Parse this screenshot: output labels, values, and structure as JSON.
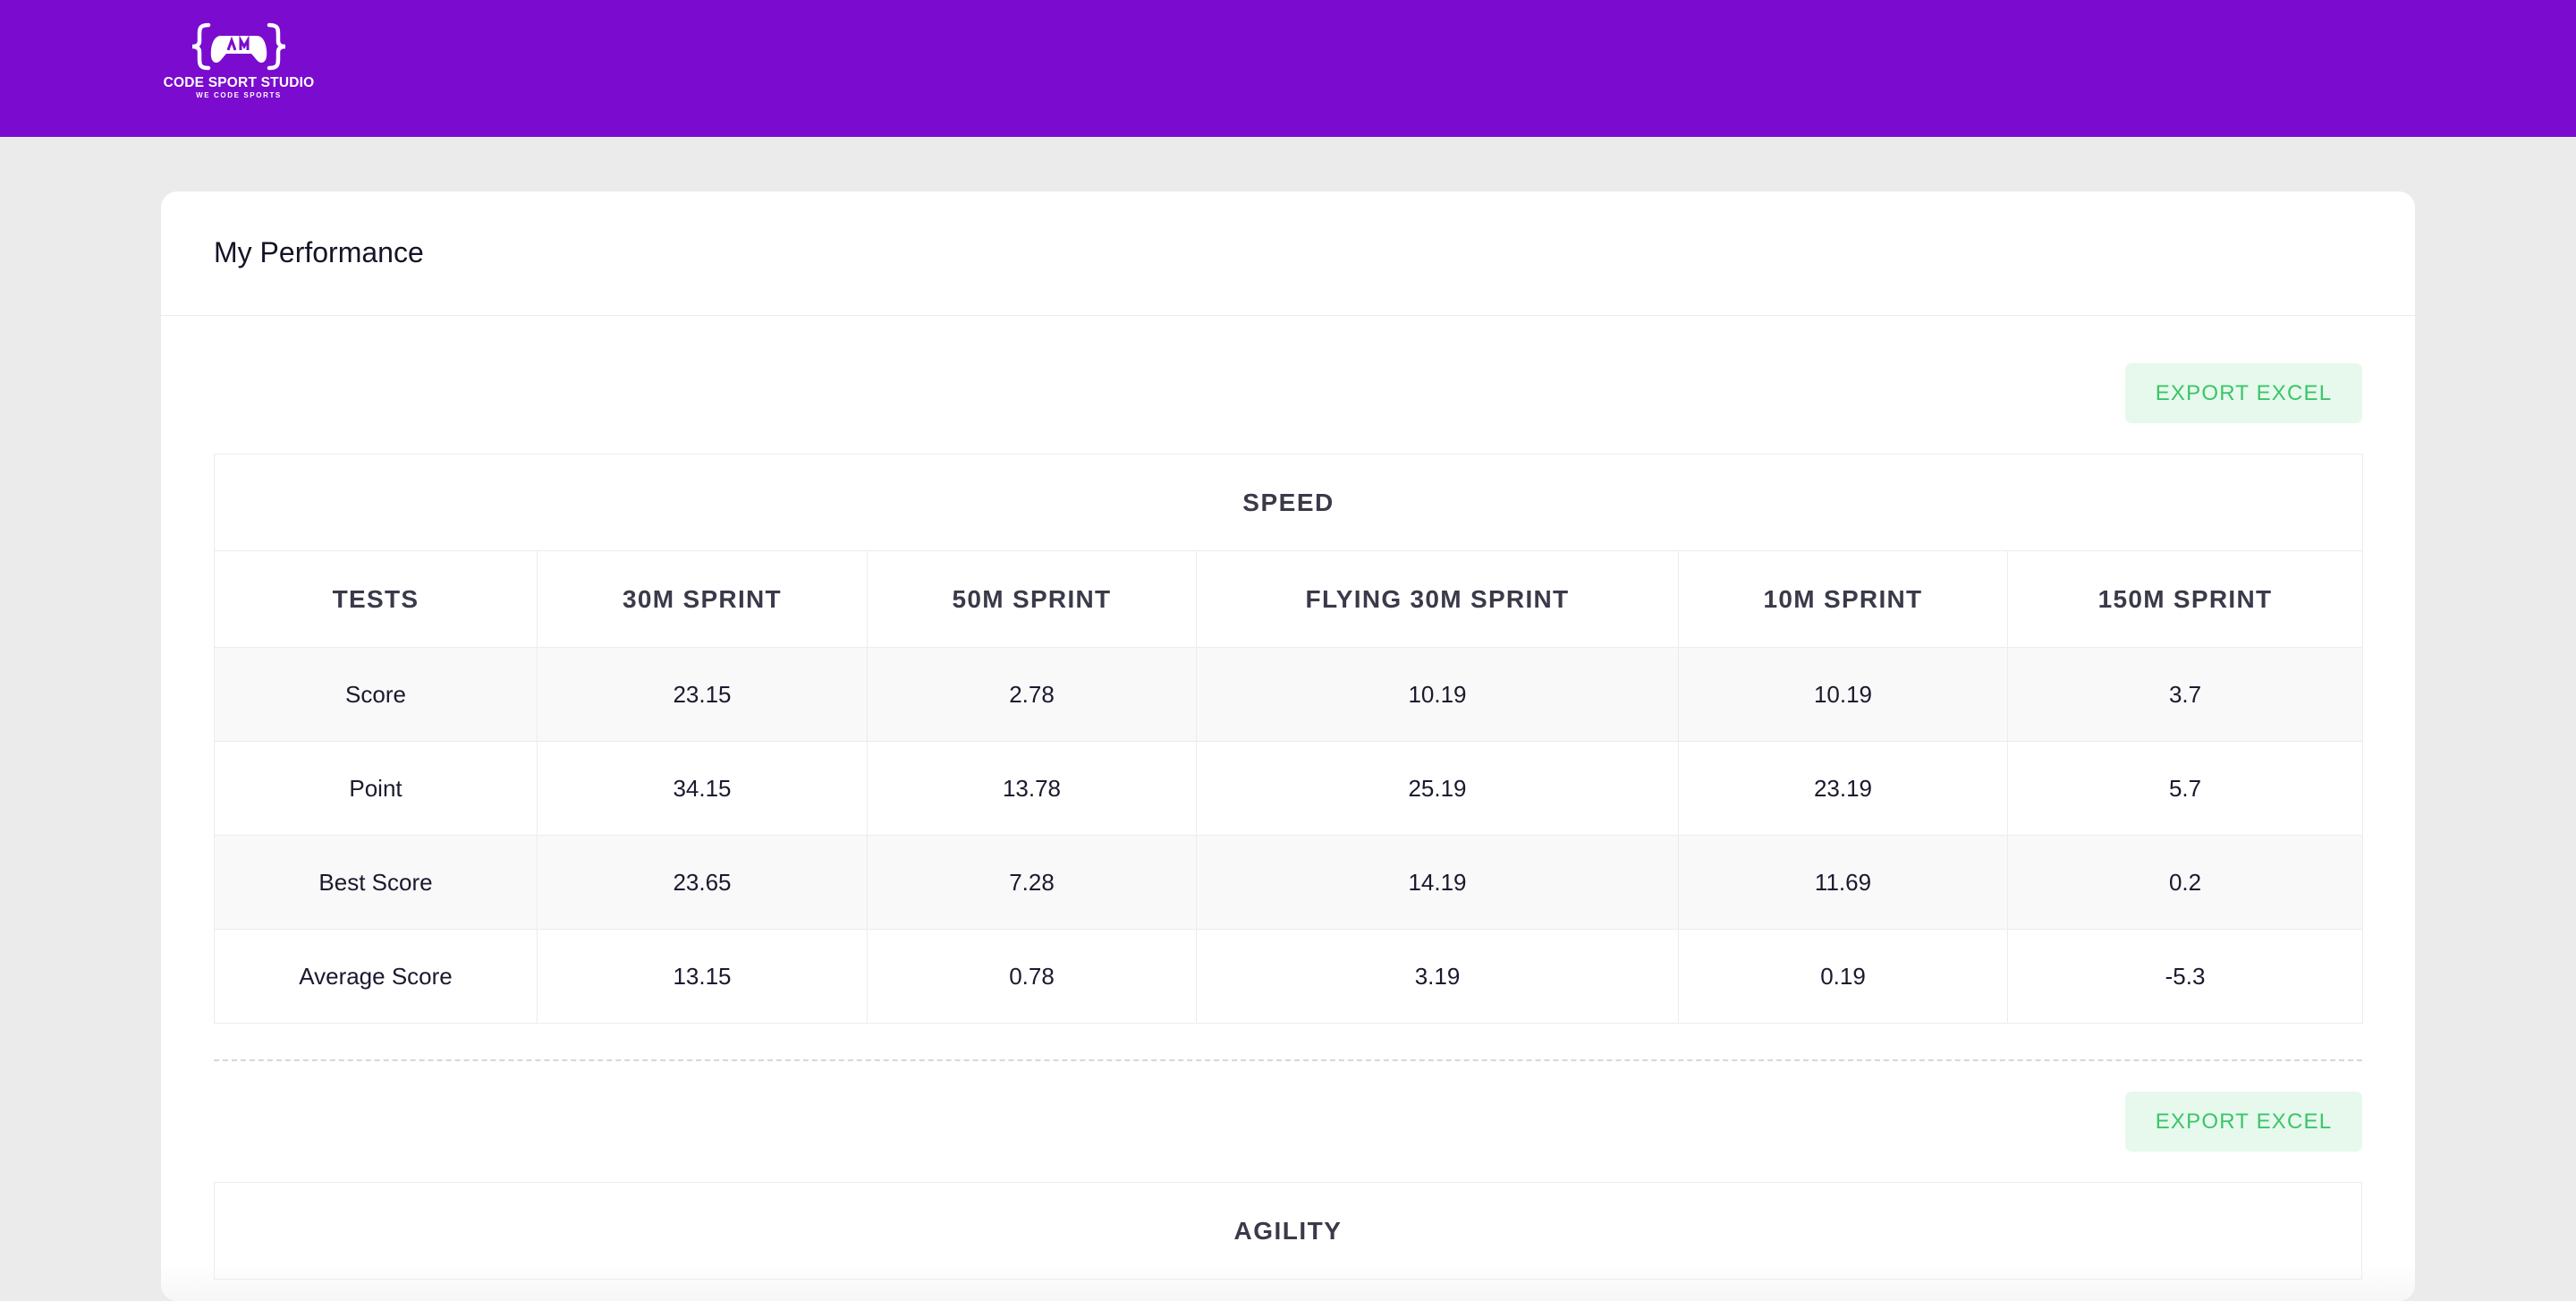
{
  "brand": {
    "name": "CODE SPORT STUDIO",
    "tagline": "WE CODE SPORTS",
    "color": "#7b0bcf"
  },
  "page": {
    "title": "My Performance"
  },
  "export_label": "EXPORT EXCEL",
  "speed_table": {
    "title": "SPEED",
    "columns": [
      "TESTS",
      "30M SPRINT",
      "50M SPRINT",
      "FLYING 30M SPRINT",
      "10M SPRINT",
      "150M SPRINT"
    ],
    "rows": [
      [
        "Score",
        "23.15",
        "2.78",
        "10.19",
        "10.19",
        "3.7"
      ],
      [
        "Point",
        "34.15",
        "13.78",
        "25.19",
        "23.19",
        "5.7"
      ],
      [
        "Best Score",
        "23.65",
        "7.28",
        "14.19",
        "11.69",
        "0.2"
      ],
      [
        "Average Score",
        "13.15",
        "0.78",
        "3.19",
        "0.19",
        "-5.3"
      ]
    ]
  },
  "agility_table": {
    "title": "AGILITY"
  },
  "colors": {
    "accent": "#7b0bcf",
    "export_bg": "#e6f9ec",
    "export_text": "#3cc46a",
    "background": "#ebebeb"
  }
}
